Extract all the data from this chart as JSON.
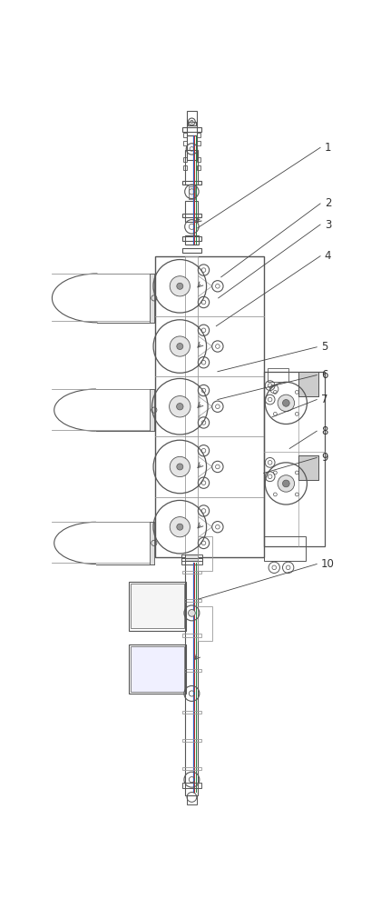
{
  "bg_color": "#ffffff",
  "line_color": "#555555",
  "light_line_color": "#999999",
  "blue_line_color": "#3060c0",
  "red_line_color": "#c03020",
  "green_line_color": "#208040",
  "label_color": "#333333",
  "label_fontsize": 8.5,
  "leader_color": "#444444"
}
